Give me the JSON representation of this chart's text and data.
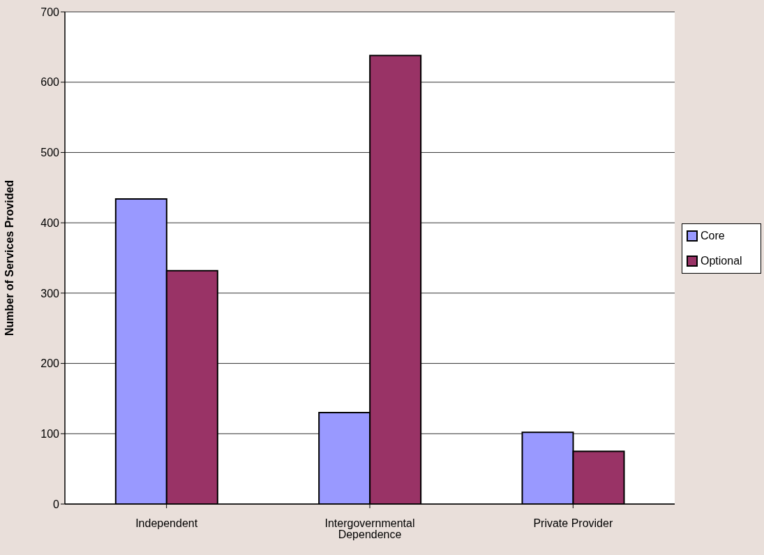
{
  "chart_data": {
    "type": "bar",
    "ylabel": "Number of Services Provided",
    "categories": [
      "Independent",
      "Intergovernmental Dependence",
      "Private Provider"
    ],
    "series": [
      {
        "name": "Core",
        "color": "#9999ff",
        "values": [
          434,
          130,
          102
        ]
      },
      {
        "name": "Optional",
        "color": "#993366",
        "values": [
          332,
          638,
          75
        ]
      }
    ],
    "ylim": [
      0,
      700
    ],
    "yticks": [
      0,
      100,
      200,
      300,
      400,
      500,
      600,
      700
    ],
    "grid": "y",
    "legend": "right"
  }
}
